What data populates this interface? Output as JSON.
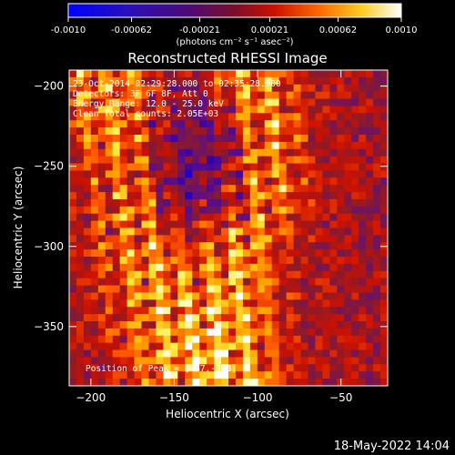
{
  "colorbar": {
    "tick_labels": [
      "-0.0010",
      "-0.00062",
      "-0.00021",
      "0.00021",
      "0.00062",
      "0.0010"
    ],
    "ticks": [
      -0.001,
      -0.00062,
      -0.00021,
      0.00021,
      0.00062,
      0.001
    ],
    "units": "(photons cm⁻² s⁻¹ asec⁻²)",
    "colors": [
      "#0000ff",
      "#3300aa",
      "#5a0f8a",
      "#8b1a2a",
      "#cc1100",
      "#ff5500",
      "#ffaa00",
      "#ffee44",
      "#ffffff"
    ]
  },
  "chart_data": {
    "type": "heatmap",
    "title": "Reconstructed RHESSI Image",
    "xlabel": "Heliocentric X (arcsec)",
    "ylabel": "Heliocentric Y (arcsec)",
    "xlim": [
      -213,
      -22
    ],
    "ylim": [
      -387,
      -190
    ],
    "x_ticks": [
      -200,
      -150,
      -100,
      -50
    ],
    "y_ticks": [
      -200,
      -250,
      -300,
      -350
    ],
    "x_tick_labels": [
      "−200",
      "−150",
      "−100",
      "−50"
    ],
    "y_tick_labels": [
      "−200",
      "−250",
      "−300",
      "−350"
    ],
    "annotations": [
      "23-Oct-2014 02:29:28.000 to 02:35:28.000",
      "Detectors: 3F 6F 8F, Att 0",
      "Energy Range: 12.0 - 25.0 keV",
      "Clean   Total counts: 2.05E+03"
    ],
    "peak_label": "Position of Peak = [-87,-378]",
    "peak": {
      "x": -87,
      "y": -378
    },
    "value_range": [
      -0.001,
      0.001
    ]
  },
  "footer": {
    "timestamp": "18-May-2022 14:04"
  }
}
